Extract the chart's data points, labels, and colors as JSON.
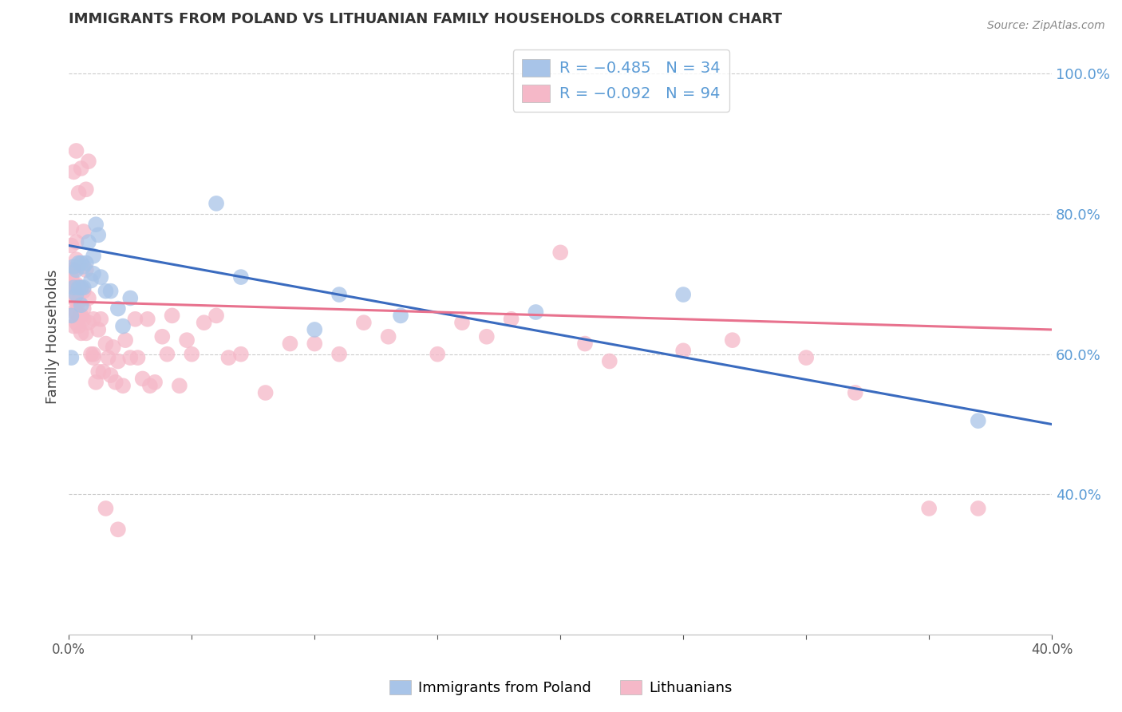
{
  "title": "IMMIGRANTS FROM POLAND VS LITHUANIAN FAMILY HOUSEHOLDS CORRELATION CHART",
  "source": "Source: ZipAtlas.com",
  "ylabel": "Family Households",
  "blue_label": "Immigrants from Poland",
  "pink_label": "Lithuanians",
  "blue_R": -0.485,
  "blue_N": 34,
  "pink_R": -0.092,
  "pink_N": 94,
  "blue_color": "#a8c4e8",
  "pink_color": "#f5b8c8",
  "blue_line_color": "#3a6bbf",
  "pink_line_color": "#e8728e",
  "right_axis_color": "#5b9bd5",
  "title_color": "#333333",
  "source_color": "#888888",
  "background_color": "#ffffff",
  "grid_color": "#cccccc",
  "xmin": 0.0,
  "xmax": 0.4,
  "ymin": 0.2,
  "ymax": 1.05,
  "blue_scatter_x": [
    0.001,
    0.001,
    0.002,
    0.002,
    0.003,
    0.003,
    0.004,
    0.004,
    0.005,
    0.005,
    0.005,
    0.006,
    0.006,
    0.007,
    0.008,
    0.009,
    0.01,
    0.01,
    0.011,
    0.012,
    0.013,
    0.015,
    0.017,
    0.02,
    0.022,
    0.025,
    0.06,
    0.07,
    0.1,
    0.11,
    0.135,
    0.19,
    0.25,
    0.37
  ],
  "blue_scatter_y": [
    0.595,
    0.655,
    0.695,
    0.725,
    0.685,
    0.72,
    0.695,
    0.73,
    0.67,
    0.695,
    0.73,
    0.695,
    0.725,
    0.73,
    0.76,
    0.705,
    0.715,
    0.74,
    0.785,
    0.77,
    0.71,
    0.69,
    0.69,
    0.665,
    0.64,
    0.68,
    0.815,
    0.71,
    0.635,
    0.685,
    0.655,
    0.66,
    0.685,
    0.505
  ],
  "pink_scatter_x": [
    0.001,
    0.001,
    0.001,
    0.001,
    0.001,
    0.002,
    0.002,
    0.002,
    0.002,
    0.002,
    0.003,
    0.003,
    0.003,
    0.003,
    0.003,
    0.004,
    0.004,
    0.004,
    0.004,
    0.005,
    0.005,
    0.005,
    0.006,
    0.006,
    0.006,
    0.007,
    0.007,
    0.008,
    0.008,
    0.009,
    0.01,
    0.01,
    0.011,
    0.012,
    0.013,
    0.014,
    0.015,
    0.016,
    0.017,
    0.018,
    0.019,
    0.02,
    0.022,
    0.023,
    0.025,
    0.027,
    0.028,
    0.03,
    0.032,
    0.033,
    0.035,
    0.038,
    0.04,
    0.042,
    0.045,
    0.048,
    0.05,
    0.055,
    0.06,
    0.065,
    0.07,
    0.08,
    0.09,
    0.1,
    0.11,
    0.12,
    0.13,
    0.15,
    0.16,
    0.17,
    0.18,
    0.2,
    0.21,
    0.22,
    0.25,
    0.27,
    0.3,
    0.32,
    0.35,
    0.37,
    0.001,
    0.001,
    0.002,
    0.003,
    0.003,
    0.004,
    0.005,
    0.006,
    0.007,
    0.008,
    0.01,
    0.012,
    0.015,
    0.02
  ],
  "pink_scatter_y": [
    0.685,
    0.695,
    0.7,
    0.71,
    0.72,
    0.64,
    0.66,
    0.68,
    0.7,
    0.72,
    0.645,
    0.66,
    0.675,
    0.7,
    0.735,
    0.64,
    0.655,
    0.675,
    0.695,
    0.63,
    0.655,
    0.695,
    0.65,
    0.665,
    0.69,
    0.63,
    0.72,
    0.645,
    0.68,
    0.6,
    0.65,
    0.595,
    0.56,
    0.635,
    0.65,
    0.575,
    0.615,
    0.595,
    0.57,
    0.61,
    0.56,
    0.59,
    0.555,
    0.62,
    0.595,
    0.65,
    0.595,
    0.565,
    0.65,
    0.555,
    0.56,
    0.625,
    0.6,
    0.655,
    0.555,
    0.62,
    0.6,
    0.645,
    0.655,
    0.595,
    0.6,
    0.545,
    0.615,
    0.615,
    0.6,
    0.645,
    0.625,
    0.6,
    0.645,
    0.625,
    0.65,
    0.745,
    0.615,
    0.59,
    0.605,
    0.62,
    0.595,
    0.545,
    0.38,
    0.38,
    0.755,
    0.78,
    0.86,
    0.89,
    0.76,
    0.83,
    0.865,
    0.775,
    0.835,
    0.875,
    0.6,
    0.575,
    0.38,
    0.35
  ]
}
